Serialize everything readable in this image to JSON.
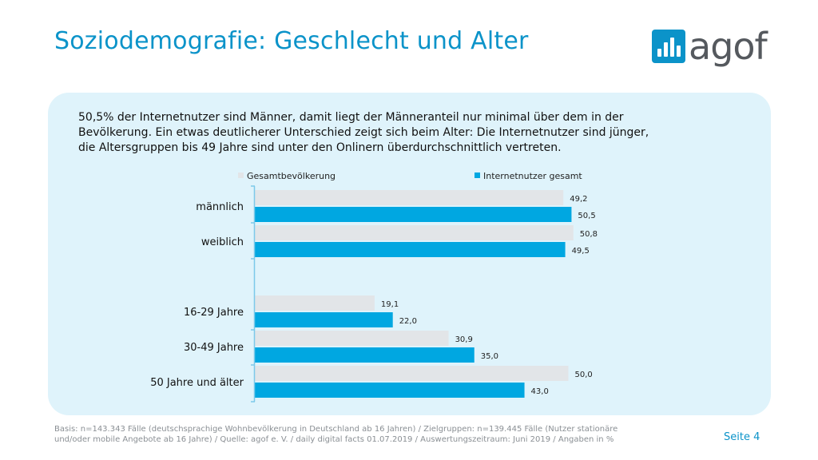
{
  "page": {
    "title": "Soziodemografie: Geschlecht und Alter",
    "logo_text": "agof",
    "intro_lines": [
      "50,5% der Internetnutzer sind Männer, damit liegt der Männeranteil nur minimal über dem in der",
      "Bevölkerung. Ein etwas deutlicherer Unterschied zeigt sich beim Alter: Die Internetnutzer sind jünger,",
      "die Altersgruppen bis 49 Jahre sind unter den Onlinern überdurchschnittlich vertreten."
    ],
    "footer_lines": [
      "Basis: n=143.343 Fälle (deutschsprachige Wohnbevölkerung in Deutschland ab 16 Jahren) / Zielgruppen: n=139.445 Fälle (Nutzer stationäre",
      "und/oder mobile Angebote ab 16 Jahre) / Quelle: agof e. V. / daily digital facts 01.07.2019 / Auswertungszeitraum: Juni 2019 / Angaben in %"
    ],
    "page_number": "Seite 4"
  },
  "colors": {
    "brand": "#0b93c9",
    "gesamt": "#e2e5e8",
    "internet": "#00a7e1",
    "panel": "#dff3fb"
  },
  "chart_data": {
    "type": "bar",
    "orientation": "horizontal",
    "legend_position": "top",
    "xlim": [
      0,
      100
    ],
    "categories": [
      "männlich",
      "weiblich",
      "16-29 Jahre",
      "30-49 Jahre",
      "50 Jahre und älter"
    ],
    "series": [
      {
        "name": "Gesamtbevölkerung",
        "values": [
          49.2,
          50.8,
          19.1,
          30.9,
          50.0
        ],
        "labels": [
          "49,2",
          "50,8",
          "19,1",
          "30,9",
          "50,0"
        ]
      },
      {
        "name": "Internetnutzer gesamt",
        "values": [
          50.5,
          49.5,
          22.0,
          35.0,
          43.0
        ],
        "labels": [
          "50,5",
          "49,5",
          "22,0",
          "35,0",
          "43,0"
        ]
      }
    ]
  }
}
